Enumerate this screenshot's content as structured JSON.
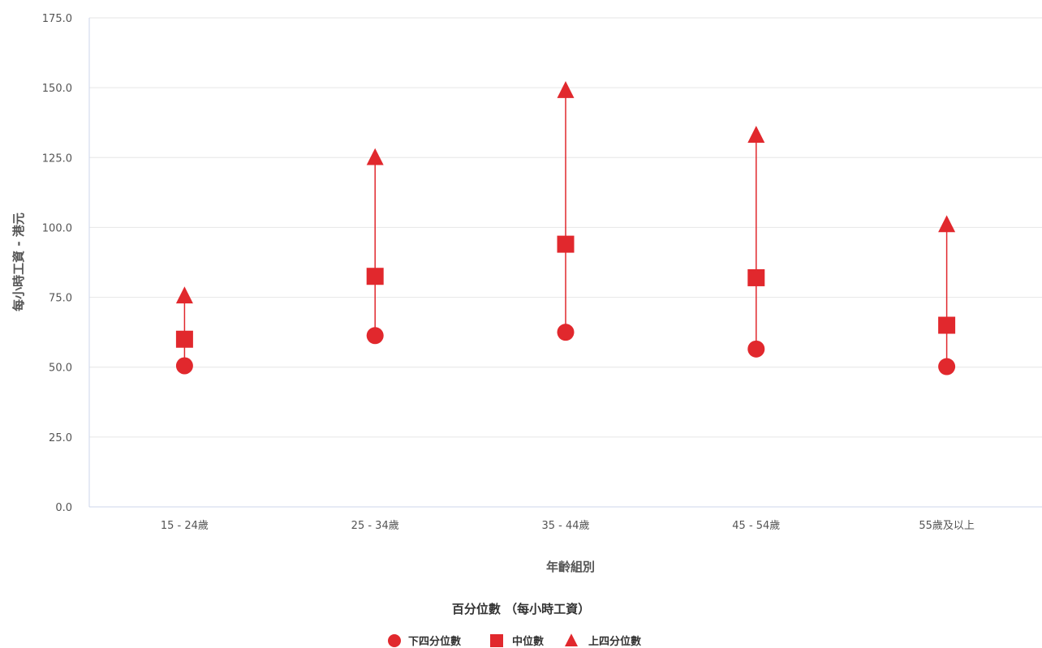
{
  "chart_data": {
    "type": "scatter",
    "title": "",
    "xlabel": "年齡組別",
    "ylabel": "每小時工資 - 港元",
    "ylim": [
      0,
      175
    ],
    "y_ticks": [
      "0.0",
      "25.0",
      "50.0",
      "75.0",
      "100.0",
      "125.0",
      "150.0",
      "175.0"
    ],
    "categories": [
      "15 - 24歲",
      "25 - 34歲",
      "35 - 44歲",
      "45 - 54歲",
      "55歲及以上"
    ],
    "series": [
      {
        "name": "下四分位數",
        "marker": "circle",
        "values": [
          50.5,
          61.3,
          62.5,
          56.5,
          50.2
        ]
      },
      {
        "name": "中位數",
        "marker": "square",
        "values": [
          60.0,
          82.5,
          94.0,
          82.0,
          65.0
        ]
      },
      {
        "name": "上四分位數",
        "marker": "triangle",
        "values": [
          75.5,
          125.0,
          149.0,
          133.0,
          101.0
        ]
      }
    ],
    "grid": true,
    "legend_title": "百分位數 （每小時工資）",
    "legend_position": "bottom-center",
    "colors": {
      "marker": "#e1282d",
      "grid": "#e6e6e6",
      "axis": "#ccd6eb"
    }
  }
}
